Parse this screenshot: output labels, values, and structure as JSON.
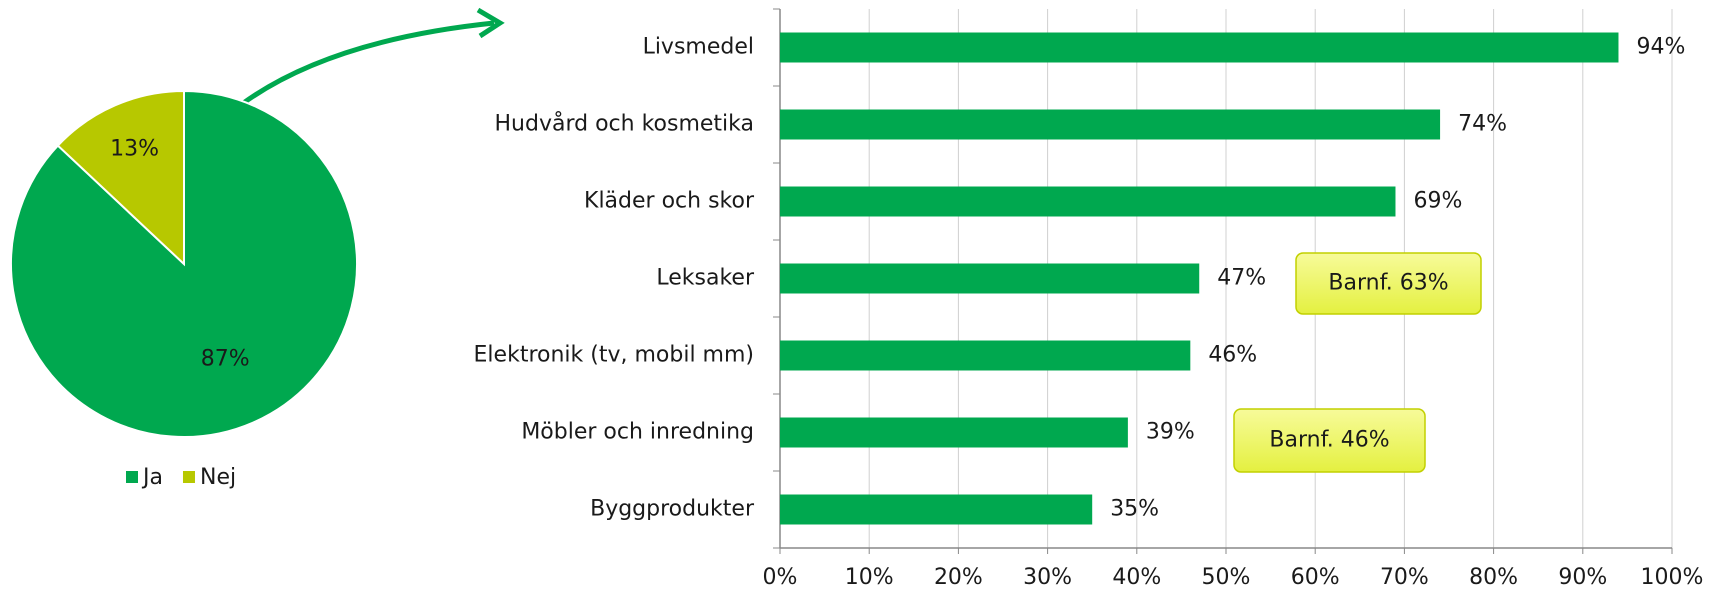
{
  "chart_data": [
    {
      "type": "pie",
      "categories": [
        "Ja",
        "Nej"
      ],
      "values": [
        87,
        13
      ],
      "value_labels": [
        "87%",
        "13%"
      ],
      "colors": [
        "#00a84f",
        "#b7c800"
      ],
      "legend": "bottom"
    },
    {
      "type": "hbar",
      "categories": [
        "Livsmedel",
        "Hudvård och kosmetika",
        "Kläder och skor",
        "Leksaker",
        "Elektronik (tv, mobil mm)",
        "Möbler och inredning",
        "Byggprodukter"
      ],
      "values": [
        94,
        74,
        69,
        47,
        46,
        39,
        35
      ],
      "value_labels": [
        "94%",
        "74%",
        "69%",
        "47%",
        "46%",
        "39%",
        "35%"
      ],
      "color": "#00a84f",
      "xlim": [
        0,
        100
      ],
      "xticks": [
        {
          "value": 0,
          "label": "0%"
        },
        {
          "value": 10,
          "label": "10%"
        },
        {
          "value": 20,
          "label": "20%"
        },
        {
          "value": 30,
          "label": "30%"
        },
        {
          "value": 40,
          "label": "40%"
        },
        {
          "value": 50,
          "label": "50%"
        },
        {
          "value": 60,
          "label": "60%"
        },
        {
          "value": 70,
          "label": "70%"
        },
        {
          "value": 80,
          "label": "80%"
        },
        {
          "value": 90,
          "label": "90%"
        },
        {
          "value": 100,
          "label": "100%"
        }
      ],
      "grid": true,
      "annotations": [
        "Barnf. 63%",
        "Barnf. 46%"
      ]
    }
  ]
}
